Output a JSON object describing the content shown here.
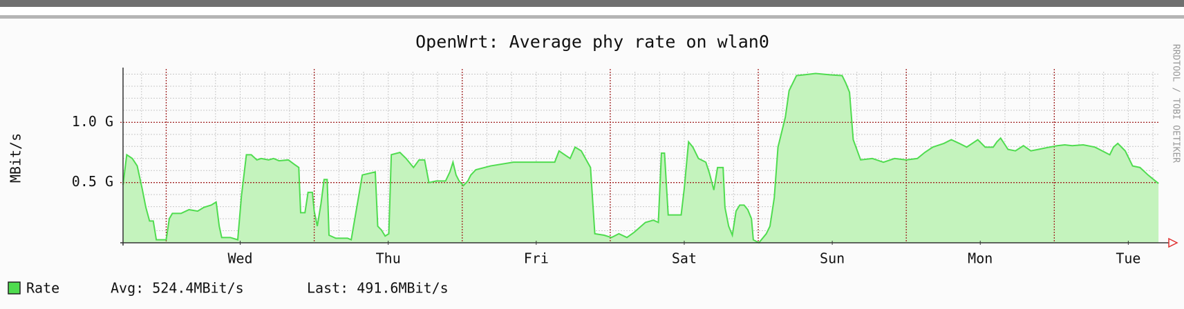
{
  "chart_data": {
    "type": "area",
    "title": "OpenWrt: Average phy rate on wlan0",
    "y_label": "MBit/s",
    "watermark": "RRDTOOL / TOBI OETIKER",
    "xlim": [
      0,
      168
    ],
    "ylim": [
      0,
      1420
    ],
    "xticks": [
      {
        "value": 19,
        "label": "Wed"
      },
      {
        "value": 43,
        "label": "Thu"
      },
      {
        "value": 67,
        "label": "Fri"
      },
      {
        "value": 91,
        "label": "Sat"
      },
      {
        "value": 115,
        "label": "Sun"
      },
      {
        "value": 139,
        "label": "Mon"
      },
      {
        "value": 163,
        "label": "Tue"
      }
    ],
    "yticks": [
      {
        "value": 500,
        "label": "0.5 G"
      },
      {
        "value": 1000,
        "label": "1.0 G"
      }
    ],
    "x_major_grid": [
      7,
      31,
      55,
      79,
      103,
      127,
      151
    ],
    "minor_grid": {
      "x_step": 4,
      "y_step": 100
    },
    "grid": true,
    "x": [
      0.0,
      0.6,
      1.5,
      2.3,
      3.1,
      3.7,
      4.3,
      4.9,
      5.4,
      6.4,
      7.0,
      7.5,
      8.0,
      9.4,
      10.7,
      12.1,
      13.1,
      14.3,
      15.1,
      15.6,
      16.0,
      17.4,
      18.6,
      19.2,
      20.0,
      20.8,
      21.7,
      22.4,
      23.6,
      24.4,
      25.3,
      26.8,
      27.8,
      28.5,
      28.8,
      29.5,
      30.0,
      30.7,
      31.0,
      31.5,
      32.1,
      32.6,
      33.1,
      33.4,
      34.5,
      36.4,
      37.0,
      38.8,
      40.9,
      41.3,
      41.9,
      42.5,
      43.1,
      43.5,
      44.9,
      45.9,
      47.1,
      48.0,
      48.9,
      49.6,
      50.8,
      52.3,
      53.0,
      53.5,
      54.0,
      54.5,
      55.2,
      55.9,
      56.4,
      57.2,
      59.6,
      63.3,
      65.8,
      70.0,
      70.7,
      71.6,
      72.5,
      73.3,
      74.3,
      75.8,
      76.5,
      78.0,
      79.2,
      80.4,
      81.7,
      82.9,
      84.7,
      86.0,
      86.8,
      87.3,
      87.8,
      88.4,
      90.5,
      91.0,
      91.7,
      92.4,
      93.3,
      94.5,
      95.1,
      95.8,
      96.4,
      97.3,
      97.6,
      98.2,
      98.8,
      99.4,
      100.0,
      100.7,
      101.3,
      101.9,
      102.2,
      103.1,
      104.3,
      104.9,
      105.6,
      106.2,
      107.4,
      108.0,
      109.2,
      110.4,
      112.3,
      114.7,
      116.6,
      117.2,
      117.8,
      118.4,
      119.6,
      121.5,
      123.3,
      125.1,
      127.0,
      128.8,
      130.0,
      131.3,
      133.1,
      134.3,
      135.6,
      136.8,
      138.6,
      139.8,
      141.1,
      141.7,
      142.3,
      143.5,
      144.7,
      146.0,
      147.2,
      148.4,
      150.2,
      151.5,
      152.7,
      153.9,
      155.7,
      157.6,
      160.0,
      160.6,
      161.3,
      162.5,
      163.7,
      164.9,
      166.2,
      167.9
    ],
    "series": [
      {
        "name": "Rate",
        "color": "#4fdc4f",
        "fill": "#c4f3bd",
        "values": [
          481,
          731,
          700,
          638,
          450,
          294,
          181,
          181,
          25,
          25,
          25,
          200,
          244,
          244,
          275,
          263,
          294,
          313,
          338,
          138,
          44,
          44,
          25,
          388,
          731,
          731,
          688,
          700,
          688,
          700,
          681,
          688,
          650,
          625,
          250,
          250,
          419,
          419,
          263,
          138,
          325,
          525,
          525,
          63,
          38,
          38,
          25,
          563,
          588,
          138,
          106,
          56,
          75,
          731,
          750,
          700,
          625,
          688,
          688,
          500,
          513,
          513,
          588,
          669,
          563,
          513,
          475,
          513,
          563,
          606,
          638,
          669,
          669,
          669,
          763,
          731,
          700,
          794,
          763,
          625,
          75,
          63,
          44,
          75,
          44,
          88,
          169,
          188,
          169,
          744,
          744,
          231,
          231,
          450,
          838,
          794,
          700,
          669,
          575,
          438,
          625,
          625,
          294,
          138,
          63,
          263,
          313,
          313,
          275,
          200,
          25,
          0,
          75,
          138,
          375,
          794,
          1044,
          1263,
          1388,
          1394,
          1406,
          1394,
          1388,
          1325,
          1250,
          856,
          688,
          700,
          669,
          700,
          688,
          700,
          750,
          794,
          825,
          856,
          825,
          794,
          856,
          794,
          794,
          838,
          869,
          775,
          763,
          806,
          763,
          775,
          794,
          806,
          813,
          806,
          813,
          794,
          731,
          794,
          825,
          763,
          638,
          625,
          563,
          492
        ]
      }
    ],
    "legend_stats": [
      "Avg: 524.4MBit/s",
      "Last: 491.6MBit/s"
    ]
  }
}
